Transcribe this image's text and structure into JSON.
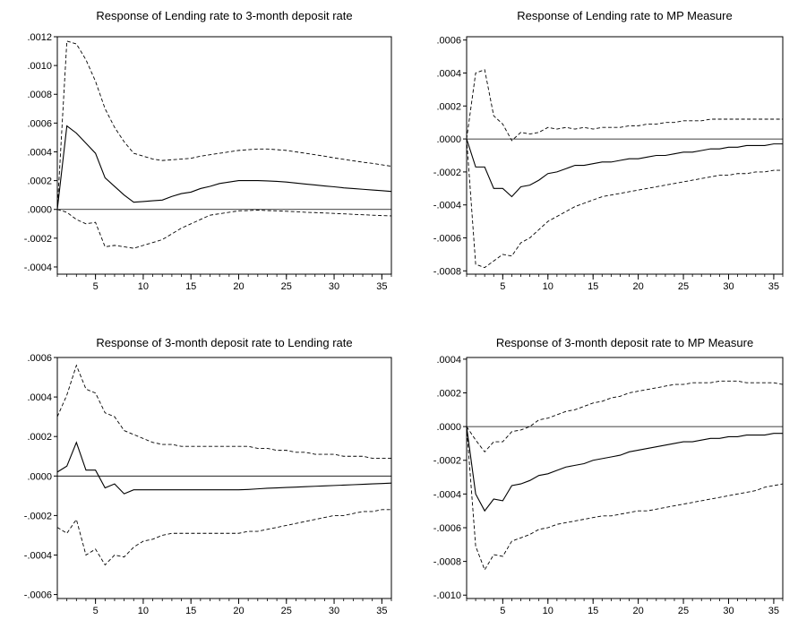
{
  "chart_data": [
    {
      "type": "line",
      "title": "Response of Lending rate to 3-month deposit rate",
      "xlim": [
        1,
        36
      ],
      "ylim": [
        -0.00045,
        0.0012
      ],
      "xticks": [
        5,
        10,
        15,
        20,
        25,
        30,
        35
      ],
      "xtick_labels": [
        "5",
        "10",
        "15",
        "20",
        "25",
        "30",
        "35"
      ],
      "yticks": [
        -0.0004,
        -0.0002,
        0,
        0.0002,
        0.0004,
        0.0006,
        0.0008,
        0.001,
        0.0012
      ],
      "ytick_labels": [
        "-.0004",
        "-.0002",
        ".0000",
        ".0002",
        ".0004",
        ".0006",
        ".0008",
        ".0010",
        ".0012"
      ],
      "x": [
        1,
        2,
        3,
        4,
        5,
        6,
        7,
        8,
        9,
        10,
        11,
        12,
        13,
        14,
        15,
        16,
        17,
        18,
        19,
        20,
        21,
        22,
        23,
        24,
        25,
        26,
        27,
        28,
        29,
        30,
        31,
        32,
        33,
        34,
        35,
        36
      ],
      "series": [
        {
          "style": "solid",
          "values": [
            0.0,
            0.00058,
            0.00053,
            0.00046,
            0.00039,
            0.00022,
            0.00016,
            0.0001,
            5e-05,
            5.5e-05,
            6e-05,
            6.5e-05,
            9e-05,
            0.00011,
            0.00012,
            0.000145,
            0.00016,
            0.00018,
            0.00019,
            0.0002,
            0.0002,
            0.0002,
            0.000198,
            0.000195,
            0.00019,
            0.000183,
            0.000176,
            0.00017,
            0.000163,
            0.000157,
            0.00015,
            0.000145,
            0.00014,
            0.000135,
            0.00013,
            0.000125
          ]
        },
        {
          "style": "dashed",
          "values": [
            0.0,
            0.00117,
            0.00115,
            0.00104,
            0.00089,
            0.0007,
            0.00057,
            0.00047,
            0.00039,
            0.00037,
            0.00035,
            0.00034,
            0.000345,
            0.00035,
            0.000355,
            0.00037,
            0.00038,
            0.00039,
            0.0004,
            0.00041,
            0.000415,
            0.00042,
            0.00042,
            0.000415,
            0.00041,
            0.0004,
            0.00039,
            0.00038,
            0.00037,
            0.000358,
            0.000348,
            0.000338,
            0.000328,
            0.00032,
            0.00031,
            0.0003
          ]
        },
        {
          "style": "dashed",
          "values": [
            0.0,
            -2e-05,
            -7e-05,
            -0.0001,
            -9e-05,
            -0.00026,
            -0.00025,
            -0.00026,
            -0.00027,
            -0.00025,
            -0.00023,
            -0.00021,
            -0.00017,
            -0.00013,
            -0.0001,
            -7e-05,
            -4e-05,
            -3e-05,
            -2e-05,
            -1e-05,
            -8e-06,
            -5e-06,
            -8e-06,
            -1e-05,
            -1.3e-05,
            -1.6e-05,
            -2e-05,
            -2.2e-05,
            -2.5e-05,
            -2.8e-05,
            -3.1e-05,
            -3.4e-05,
            -3.7e-05,
            -4e-05,
            -4.3e-05,
            -4.5e-05
          ]
        }
      ]
    },
    {
      "type": "line",
      "title": "Response of Lending rate to MP Measure",
      "xlim": [
        1,
        36
      ],
      "ylim": [
        -0.00082,
        0.00062
      ],
      "xticks": [
        5,
        10,
        15,
        20,
        25,
        30,
        35
      ],
      "xtick_labels": [
        "5",
        "10",
        "15",
        "20",
        "25",
        "30",
        "35"
      ],
      "yticks": [
        -0.0008,
        -0.0006,
        -0.0004,
        -0.0002,
        0,
        0.0002,
        0.0004,
        0.0006
      ],
      "ytick_labels": [
        "-.0008",
        "-.0006",
        "-.0004",
        "-.0002",
        ".0000",
        ".0002",
        ".0004",
        ".0006"
      ],
      "x": [
        1,
        2,
        3,
        4,
        5,
        6,
        7,
        8,
        9,
        10,
        11,
        12,
        13,
        14,
        15,
        16,
        17,
        18,
        19,
        20,
        21,
        22,
        23,
        24,
        25,
        26,
        27,
        28,
        29,
        30,
        31,
        32,
        33,
        34,
        35,
        36
      ],
      "series": [
        {
          "style": "solid",
          "values": [
            0.0,
            -0.00017,
            -0.00017,
            -0.0003,
            -0.0003,
            -0.00035,
            -0.00029,
            -0.00028,
            -0.00025,
            -0.00021,
            -0.0002,
            -0.00018,
            -0.00016,
            -0.00016,
            -0.00015,
            -0.00014,
            -0.00014,
            -0.00013,
            -0.00012,
            -0.00012,
            -0.00011,
            -0.0001,
            -0.0001,
            -9e-05,
            -8e-05,
            -8e-05,
            -7e-05,
            -6e-05,
            -6e-05,
            -5e-05,
            -5e-05,
            -4e-05,
            -4e-05,
            -4e-05,
            -3e-05,
            -3e-05
          ]
        },
        {
          "style": "dashed",
          "values": [
            0.0,
            0.0004,
            0.00042,
            0.00014,
            9e-05,
            -1e-05,
            4e-05,
            3e-05,
            4e-05,
            7e-05,
            6e-05,
            7e-05,
            6e-05,
            7e-05,
            6e-05,
            7e-05,
            7e-05,
            7e-05,
            8e-05,
            8e-05,
            9e-05,
            9e-05,
            0.0001,
            0.0001,
            0.00011,
            0.00011,
            0.00011,
            0.00012,
            0.00012,
            0.00012,
            0.00012,
            0.00012,
            0.00012,
            0.00012,
            0.00012,
            0.00012
          ]
        },
        {
          "style": "dashed",
          "values": [
            0.0,
            -0.00076,
            -0.00078,
            -0.00074,
            -0.0007,
            -0.00071,
            -0.00063,
            -0.0006,
            -0.00055,
            -0.0005,
            -0.00047,
            -0.00044,
            -0.00041,
            -0.00039,
            -0.00037,
            -0.00035,
            -0.00034,
            -0.00033,
            -0.00032,
            -0.00031,
            -0.0003,
            -0.00029,
            -0.00028,
            -0.00027,
            -0.00026,
            -0.00025,
            -0.00024,
            -0.00023,
            -0.00022,
            -0.00022,
            -0.00021,
            -0.00021,
            -0.0002,
            -0.0002,
            -0.00019,
            -0.00019
          ]
        }
      ]
    },
    {
      "type": "line",
      "title": "Response of 3-month deposit rate to Lending rate",
      "xlim": [
        1,
        36
      ],
      "ylim": [
        -0.00062,
        0.0006
      ],
      "xticks": [
        5,
        10,
        15,
        20,
        25,
        30,
        35
      ],
      "xtick_labels": [
        "5",
        "10",
        "15",
        "20",
        "25",
        "30",
        "35"
      ],
      "yticks": [
        -0.0006,
        -0.0004,
        -0.0002,
        0,
        0.0002,
        0.0004,
        0.0006
      ],
      "ytick_labels": [
        "-.0006",
        "-.0004",
        "-.0002",
        ".0000",
        ".0002",
        ".0004",
        ".0006"
      ],
      "x": [
        1,
        2,
        3,
        4,
        5,
        6,
        7,
        8,
        9,
        10,
        11,
        12,
        13,
        14,
        15,
        16,
        17,
        18,
        19,
        20,
        21,
        22,
        23,
        24,
        25,
        26,
        27,
        28,
        29,
        30,
        31,
        32,
        33,
        34,
        35,
        36
      ],
      "series": [
        {
          "style": "solid",
          "values": [
            2e-05,
            5e-05,
            0.00017,
            3e-05,
            3e-05,
            -6e-05,
            -4e-05,
            -9e-05,
            -7e-05,
            -7e-05,
            -7e-05,
            -7e-05,
            -7e-05,
            -7e-05,
            -7e-05,
            -7e-05,
            -7e-05,
            -7e-05,
            -7e-05,
            -7e-05,
            -6.8e-05,
            -6.5e-05,
            -6.2e-05,
            -6e-05,
            -5.8e-05,
            -5.6e-05,
            -5.4e-05,
            -5.2e-05,
            -5e-05,
            -4.8e-05,
            -4.6e-05,
            -4.4e-05,
            -4.2e-05,
            -4e-05,
            -3.8e-05,
            -3.6e-05
          ]
        },
        {
          "style": "dashed",
          "values": [
            0.0003,
            0.00041,
            0.00056,
            0.00044,
            0.00042,
            0.00032,
            0.0003,
            0.00023,
            0.00021,
            0.00019,
            0.00017,
            0.00016,
            0.00016,
            0.00015,
            0.00015,
            0.00015,
            0.00015,
            0.00015,
            0.00015,
            0.00015,
            0.00015,
            0.00014,
            0.00014,
            0.00013,
            0.00013,
            0.00012,
            0.00012,
            0.00011,
            0.00011,
            0.00011,
            0.0001,
            0.0001,
            0.0001,
            9e-05,
            9e-05,
            9e-05
          ]
        },
        {
          "style": "dashed",
          "values": [
            -0.00026,
            -0.00029,
            -0.00022,
            -0.0004,
            -0.00037,
            -0.00045,
            -0.0004,
            -0.00041,
            -0.00036,
            -0.00033,
            -0.00032,
            -0.0003,
            -0.00029,
            -0.00029,
            -0.00029,
            -0.00029,
            -0.00029,
            -0.00029,
            -0.00029,
            -0.00029,
            -0.00028,
            -0.00028,
            -0.00027,
            -0.00026,
            -0.00025,
            -0.00024,
            -0.00023,
            -0.00022,
            -0.00021,
            -0.0002,
            -0.0002,
            -0.00019,
            -0.00018,
            -0.00018,
            -0.00017,
            -0.00017
          ]
        }
      ]
    },
    {
      "type": "line",
      "title": "Response of 3-month deposit rate to MP Measure",
      "xlim": [
        1,
        36
      ],
      "ylim": [
        -0.00102,
        0.00041
      ],
      "xticks": [
        5,
        10,
        15,
        20,
        25,
        30,
        35
      ],
      "xtick_labels": [
        "5",
        "10",
        "15",
        "20",
        "25",
        "30",
        "35"
      ],
      "yticks": [
        -0.001,
        -0.0008,
        -0.0006,
        -0.0004,
        -0.0002,
        0,
        0.0002,
        0.0004
      ],
      "ytick_labels": [
        "-.0010",
        "-.0008",
        "-.0006",
        "-.0004",
        "-.0002",
        ".0000",
        ".0002",
        ".0004"
      ],
      "x": [
        1,
        2,
        3,
        4,
        5,
        6,
        7,
        8,
        9,
        10,
        11,
        12,
        13,
        14,
        15,
        16,
        17,
        18,
        19,
        20,
        21,
        22,
        23,
        24,
        25,
        26,
        27,
        28,
        29,
        30,
        31,
        32,
        33,
        34,
        35,
        36
      ],
      "series": [
        {
          "style": "solid",
          "values": [
            0.0,
            -0.0004,
            -0.0005,
            -0.00043,
            -0.00044,
            -0.00035,
            -0.00034,
            -0.00032,
            -0.00029,
            -0.00028,
            -0.00026,
            -0.00024,
            -0.00023,
            -0.00022,
            -0.0002,
            -0.00019,
            -0.00018,
            -0.00017,
            -0.00015,
            -0.00014,
            -0.00013,
            -0.00012,
            -0.00011,
            -0.0001,
            -9e-05,
            -9e-05,
            -8e-05,
            -7e-05,
            -7e-05,
            -6e-05,
            -6e-05,
            -5e-05,
            -5e-05,
            -5e-05,
            -4e-05,
            -4e-05
          ]
        },
        {
          "style": "dashed",
          "values": [
            0.0,
            -8e-05,
            -0.00015,
            -9e-05,
            -9e-05,
            -3e-05,
            -2e-05,
            0.0,
            4e-05,
            5e-05,
            7e-05,
            9e-05,
            0.0001,
            0.00012,
            0.00014,
            0.00015,
            0.00017,
            0.00018,
            0.0002,
            0.00021,
            0.00022,
            0.00023,
            0.00024,
            0.00025,
            0.00025,
            0.00026,
            0.00026,
            0.00026,
            0.00027,
            0.00027,
            0.00027,
            0.00026,
            0.00026,
            0.00026,
            0.00026,
            0.00025
          ]
        },
        {
          "style": "dashed",
          "values": [
            0.0,
            -0.00071,
            -0.00085,
            -0.00076,
            -0.00077,
            -0.00068,
            -0.00066,
            -0.00064,
            -0.00061,
            -0.0006,
            -0.00058,
            -0.00057,
            -0.00056,
            -0.00055,
            -0.00054,
            -0.00053,
            -0.00053,
            -0.00052,
            -0.00051,
            -0.0005,
            -0.0005,
            -0.00049,
            -0.00048,
            -0.00047,
            -0.00046,
            -0.00045,
            -0.00044,
            -0.00043,
            -0.00042,
            -0.00041,
            -0.0004,
            -0.00039,
            -0.00038,
            -0.00036,
            -0.00035,
            -0.00034
          ]
        }
      ]
    }
  ]
}
